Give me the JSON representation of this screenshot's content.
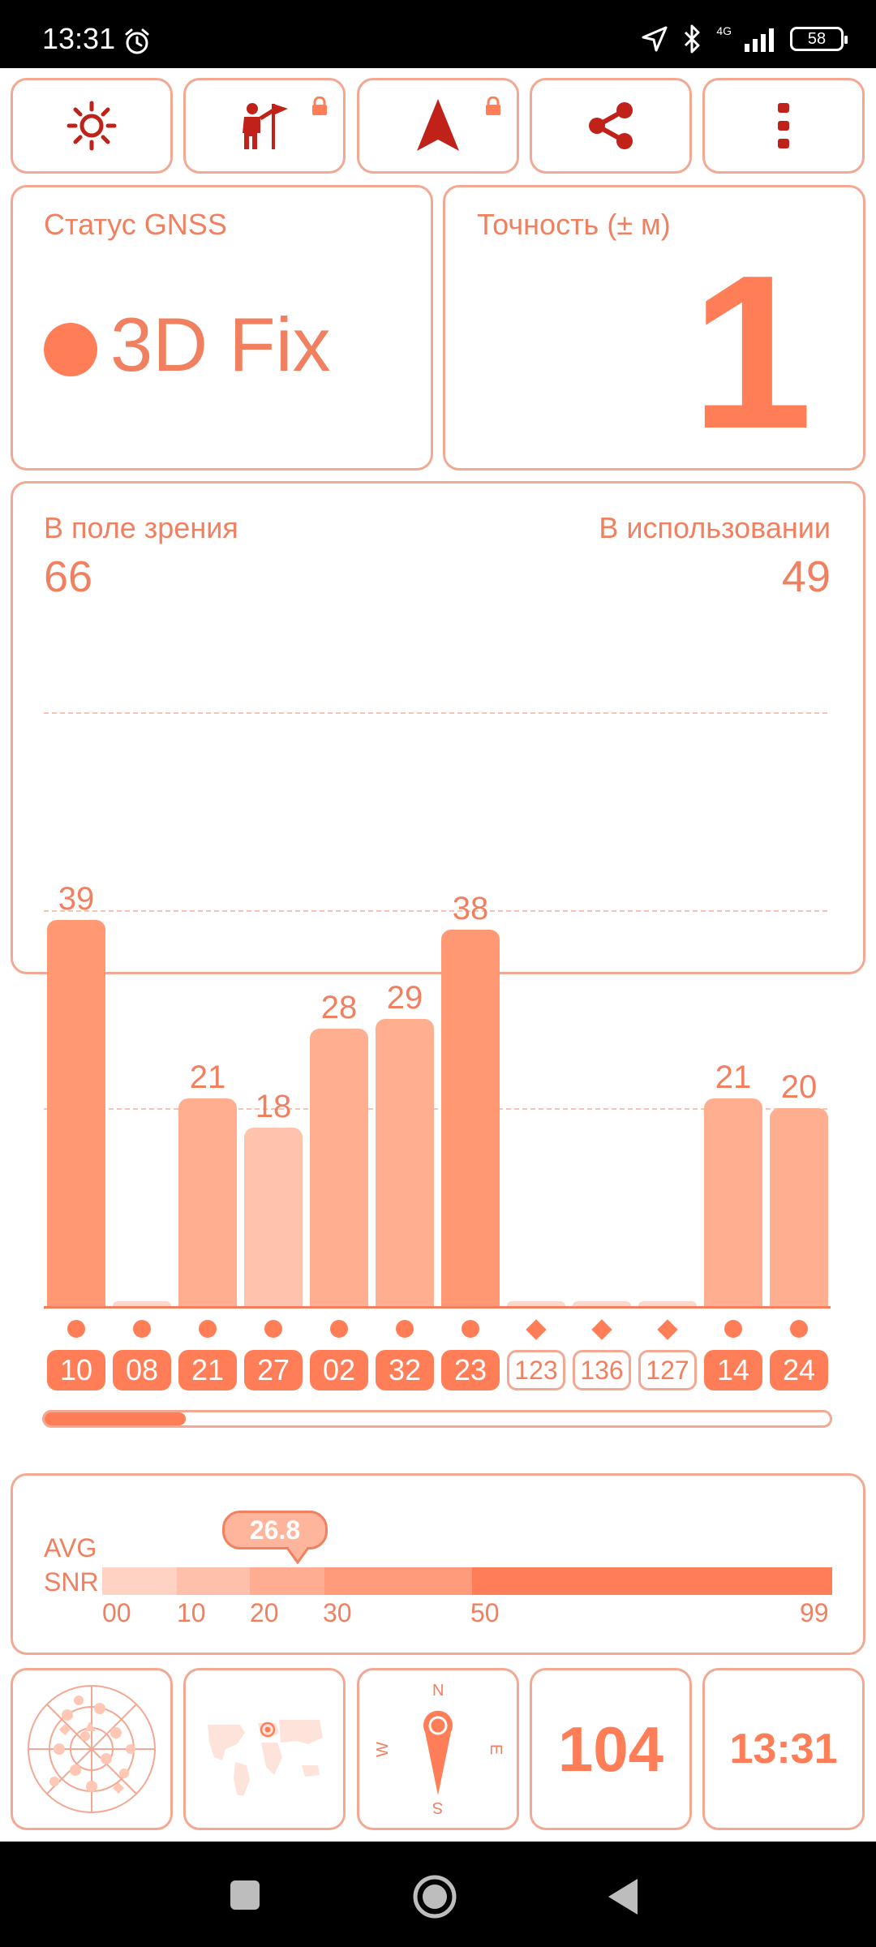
{
  "status_bar": {
    "time": "13:31",
    "network": "4G",
    "battery": "58"
  },
  "toolbar": {
    "buttons": [
      "brightness",
      "person-flag",
      "navigation-arrow",
      "share",
      "more"
    ]
  },
  "gnss": {
    "label": "Статус GNSS",
    "fix": "3D Fix"
  },
  "accuracy": {
    "label": "Точность (± м)",
    "value": "1"
  },
  "satellites": {
    "in_view_label": "В поле зрения",
    "in_view": "66",
    "in_use_label": "В использовании",
    "in_use": "49"
  },
  "chart_data": {
    "type": "bar",
    "categories": [
      "10",
      "08",
      "21",
      "27",
      "02",
      "32",
      "23",
      "123",
      "136",
      "127",
      "14",
      "24"
    ],
    "values": [
      39,
      0,
      21,
      18,
      28,
      29,
      38,
      0,
      0,
      0,
      21,
      20
    ],
    "value_labels": [
      "39",
      "",
      "21",
      "18",
      "28",
      "29",
      "38",
      "",
      "",
      "",
      "21",
      "20"
    ],
    "ylim": [
      0,
      60
    ],
    "grid": true,
    "in_use": [
      true,
      true,
      true,
      true,
      true,
      true,
      true,
      false,
      false,
      false,
      true,
      true
    ],
    "markers": [
      "circle",
      "circle",
      "circle",
      "circle",
      "circle",
      "circle",
      "circle",
      "diamond",
      "diamond",
      "diamond",
      "circle",
      "circle"
    ]
  },
  "snr": {
    "label_line1": "AVG",
    "label_line2": "SNR",
    "avg": "26.8",
    "avg_value": 26.8,
    "ticks": [
      "00",
      "10",
      "20",
      "30",
      "50",
      "99"
    ],
    "scroll_fraction": 0.18
  },
  "bottom": {
    "compass": {
      "n": "N",
      "e": "E",
      "s": "S",
      "w": "W"
    },
    "count": "104",
    "clock": "13:31"
  },
  "colors": {
    "accent": "#FF7E57",
    "text": "#F08060",
    "border": "#F2A892"
  }
}
